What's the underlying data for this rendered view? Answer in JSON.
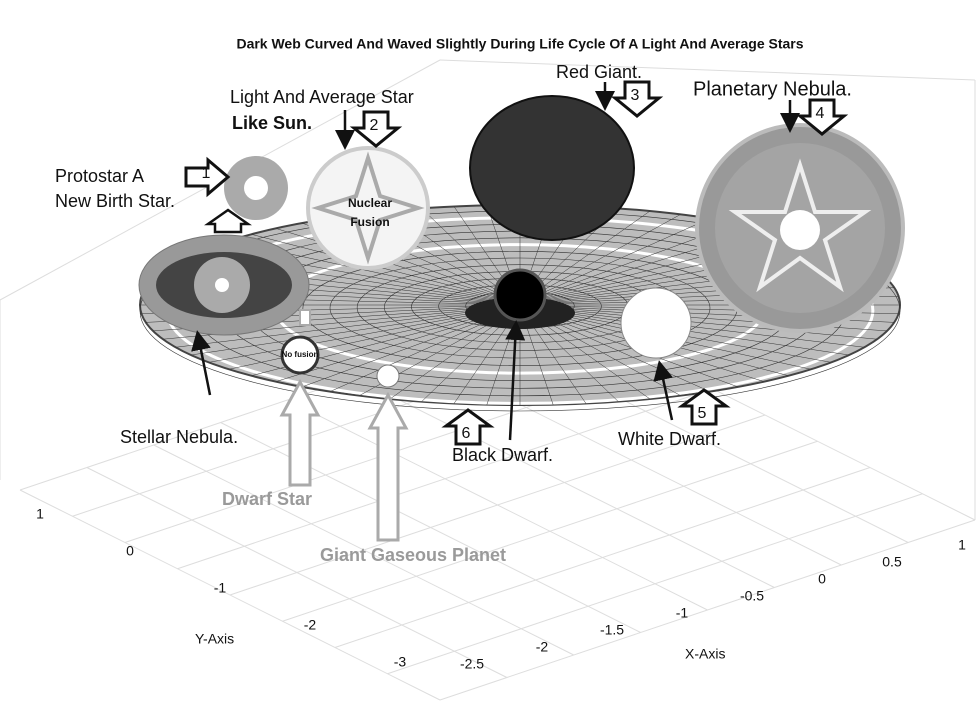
{
  "title": "Dark Web Curved And Waved Slightly During Life Cycle Of A Light And Average Stars",
  "stages": [
    {
      "number": "1",
      "lines": [
        "Protostar A",
        "New Birth Star."
      ]
    },
    {
      "number": "2",
      "lines": [
        "Light And Average Star",
        "Like Sun."
      ]
    },
    {
      "number": "3",
      "lines": [
        "Red Giant."
      ]
    },
    {
      "number": "4",
      "lines": [
        "Planetary Nebula."
      ]
    },
    {
      "number": "5",
      "lines": [
        "White Dwarf."
      ]
    },
    {
      "number": "6",
      "lines": [
        "Black Dwarf."
      ]
    }
  ],
  "stellar_nebula": "Stellar Nebula.",
  "nuclear_fusion": [
    "Nuclear",
    "Fusion"
  ],
  "no_fusion": "No fusion",
  "dwarf_star": "Dwarf Star",
  "giant_gaseous_planet": "Giant Gaseous Planet",
  "axes": {
    "x_label": "X-Axis",
    "y_label": "Y-Axis",
    "x_ticks": [
      "-2.5",
      "-2",
      "-1.5",
      "-1",
      "-0.5",
      "0",
      "0.5",
      "1"
    ],
    "y_ticks": [
      "1",
      "0",
      "-1",
      "-2",
      "-3"
    ]
  }
}
